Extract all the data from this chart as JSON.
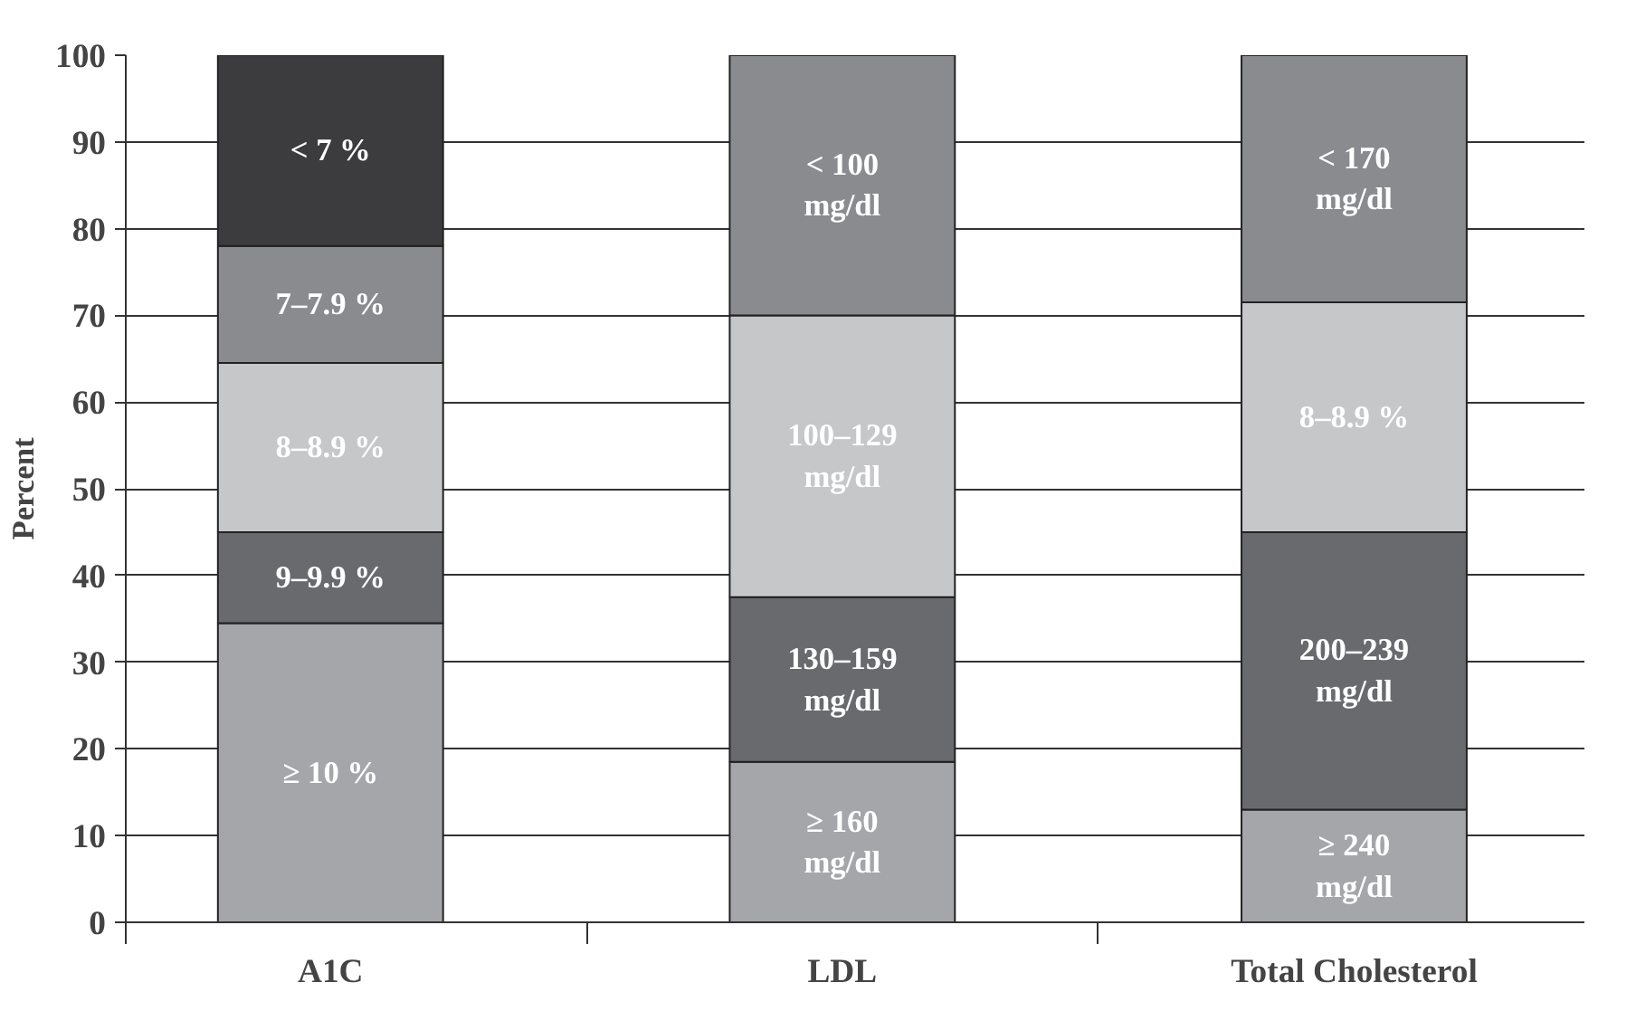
{
  "chart_data": {
    "type": "bar",
    "stacked": true,
    "categories": [
      "A1C",
      "LDL",
      "Total Cholesterol"
    ],
    "ylabel": "Percent",
    "ylim": [
      0,
      100
    ],
    "yticks": [
      0,
      10,
      20,
      30,
      40,
      50,
      60,
      70,
      80,
      90,
      100
    ],
    "grid": "y",
    "series": [
      {
        "color": "#a5a6aa",
        "values": [
          34.5,
          18.5,
          13
        ]
      },
      {
        "color": "#696a6e",
        "values": [
          10.5,
          19,
          32
        ]
      },
      {
        "color": "#c6c7c9",
        "values": [
          19.5,
          32.5,
          26.5
        ]
      },
      {
        "color": "#8a8b8f",
        "values": [
          13.5,
          30,
          28.5
        ]
      },
      {
        "color": "#3c3c3e",
        "values": [
          22,
          null,
          null
        ]
      }
    ],
    "annotations": [
      "≥ 10 %",
      "≥ 160\nmg/dl",
      "≥ 240\nmg/dl",
      "9–9.9 %",
      "130–159\nmg/dl",
      "200–239\nmg/dl",
      "8–8.9 %",
      "100–129\nmg/dl",
      "8–8.9 %",
      "7–7.9 %",
      "< 100\nmg/dl",
      "< 170\nmg/dl",
      "< 7 %"
    ]
  }
}
